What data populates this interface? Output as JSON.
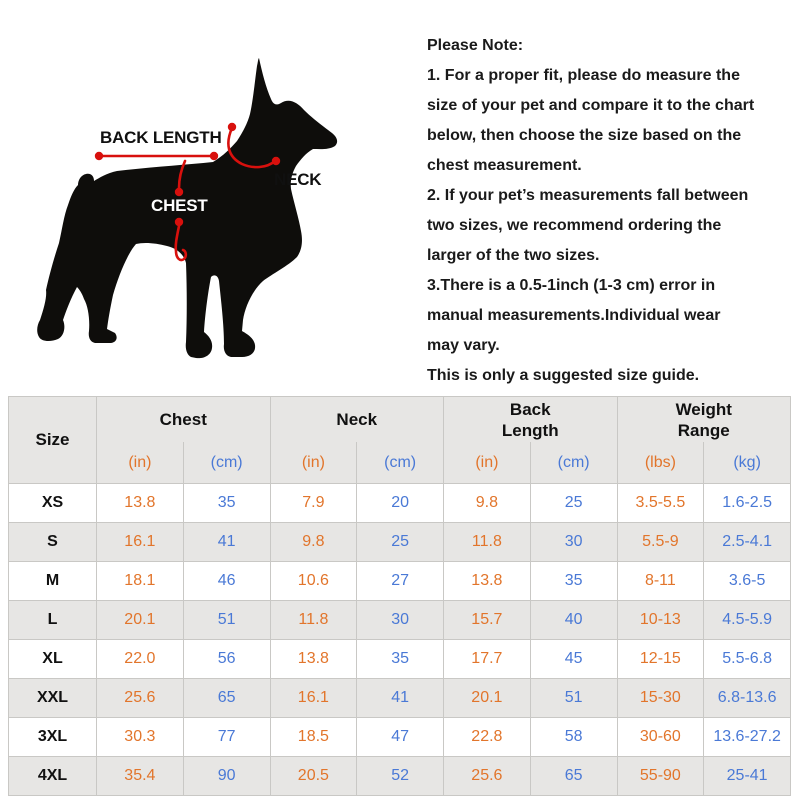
{
  "colors": {
    "inch_orange": "#E2752B",
    "cm_blue": "#4A79D6",
    "measure_red": "#D8100D",
    "stripe_gray": "#E7E6E4",
    "border_gray": "#C9C8C5"
  },
  "diagram": {
    "labels": {
      "back_length": "BACK LENGTH",
      "neck": "NECK",
      "chest": "CHEST"
    }
  },
  "notes": {
    "lines": [
      "Please Note:",
      "1. For a proper fit, please do measure the",
      "size of your pet and compare it to the chart",
      "below, then choose the size based on the",
      "chest measurement.",
      "2. If your pet’s measurements fall between",
      "two sizes, we recommend ordering the",
      "larger of the two sizes.",
      "3.There is a 0.5-1inch (1-3 cm) error in",
      "manual measurements.Individual wear",
      "may vary.",
      "This is only a suggested size guide."
    ]
  },
  "table": {
    "size_header": "Size",
    "groups": [
      {
        "l1": "Chest",
        "l2": ""
      },
      {
        "l1": "Neck",
        "l2": ""
      },
      {
        "l1": "Back",
        "l2": "Length"
      },
      {
        "l1": "Weight",
        "l2": "Range"
      }
    ],
    "units": [
      "(in)",
      "(cm)",
      "(in)",
      "(cm)",
      "(in)",
      "(cm)",
      "(lbs)",
      "(kg)"
    ],
    "rows": [
      {
        "size": "XS",
        "values": [
          "13.8",
          "35",
          "7.9",
          "20",
          "9.8",
          "25",
          "3.5-5.5",
          "1.6-2.5"
        ]
      },
      {
        "size": "S",
        "values": [
          "16.1",
          "41",
          "9.8",
          "25",
          "11.8",
          "30",
          "5.5-9",
          "2.5-4.1"
        ]
      },
      {
        "size": "M",
        "values": [
          "18.1",
          "46",
          "10.6",
          "27",
          "13.8",
          "35",
          "8-11",
          "3.6-5"
        ]
      },
      {
        "size": "L",
        "values": [
          "20.1",
          "51",
          "11.8",
          "30",
          "15.7",
          "40",
          "10-13",
          "4.5-5.9"
        ]
      },
      {
        "size": "XL",
        "values": [
          "22.0",
          "56",
          "13.8",
          "35",
          "17.7",
          "45",
          "12-15",
          "5.5-6.8"
        ]
      },
      {
        "size": "XXL",
        "values": [
          "25.6",
          "65",
          "16.1",
          "41",
          "20.1",
          "51",
          "15-30",
          "6.8-13.6"
        ]
      },
      {
        "size": "3XL",
        "values": [
          "30.3",
          "77",
          "18.5",
          "47",
          "22.8",
          "58",
          "30-60",
          "13.6-27.2"
        ]
      },
      {
        "size": "4XL",
        "values": [
          "35.4",
          "90",
          "20.5",
          "52",
          "25.6",
          "65",
          "55-90",
          "25-41"
        ]
      }
    ]
  }
}
